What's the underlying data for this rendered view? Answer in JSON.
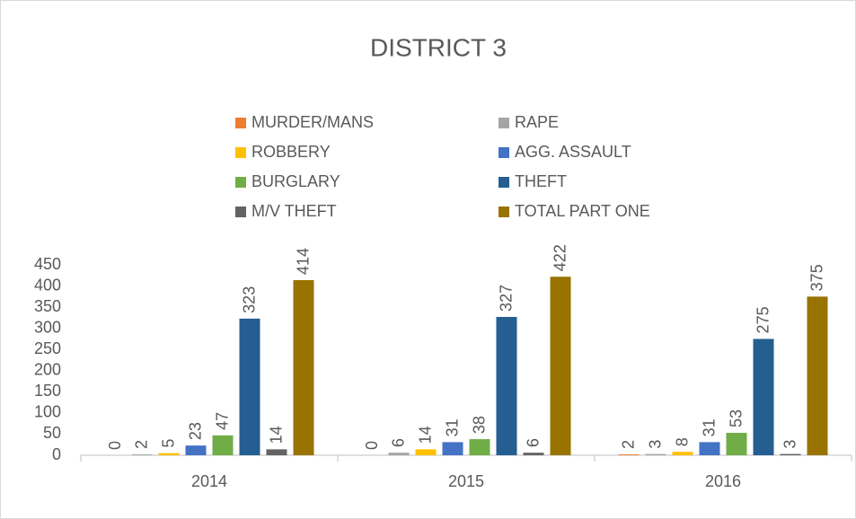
{
  "chart_data": {
    "type": "bar",
    "title": "DISTRICT 3",
    "categories": [
      "2014",
      "2015",
      "2016"
    ],
    "series": [
      {
        "name": "MURDER/MANS",
        "color": "#ED7D31",
        "values": [
          0,
          0,
          2
        ]
      },
      {
        "name": "RAPE",
        "color": "#A5A5A5",
        "values": [
          2,
          6,
          3
        ]
      },
      {
        "name": "ROBBERY",
        "color": "#FFC000",
        "values": [
          5,
          14,
          8
        ]
      },
      {
        "name": "AGG. ASSAULT",
        "color": "#4472C4",
        "values": [
          23,
          31,
          31
        ]
      },
      {
        "name": "BURGLARY",
        "color": "#70AD47",
        "values": [
          47,
          38,
          53
        ]
      },
      {
        "name": "THEFT",
        "color": "#255E91",
        "values": [
          323,
          327,
          275
        ]
      },
      {
        "name": "M/V THEFT",
        "color": "#636363",
        "values": [
          14,
          6,
          3
        ]
      },
      {
        "name": "TOTAL PART ONE",
        "color": "#997300",
        "values": [
          414,
          422,
          375
        ]
      }
    ],
    "ylim": [
      0,
      450
    ],
    "yticks": [
      0,
      50,
      100,
      150,
      200,
      250,
      300,
      350,
      400,
      450
    ],
    "grid": false,
    "legend": "top"
  }
}
